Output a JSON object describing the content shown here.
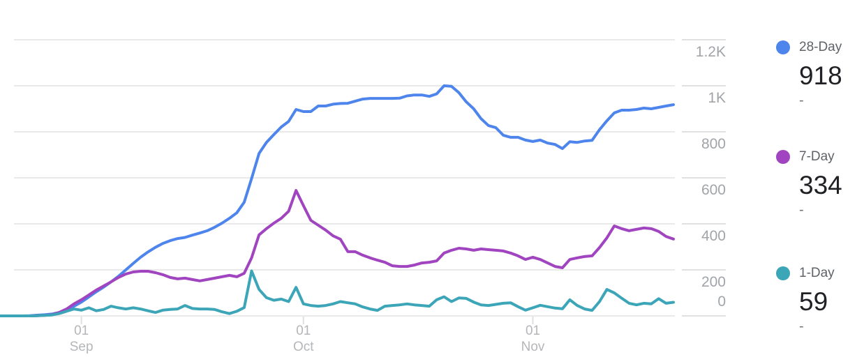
{
  "chart_data": {
    "type": "line",
    "title": "",
    "xlabel": "",
    "ylabel": "",
    "grid": true,
    "legend_position": "right",
    "x_axis": {
      "ticks": [
        {
          "index": 11,
          "line1": "01",
          "line2": "Sep"
        },
        {
          "index": 41,
          "line1": "01",
          "line2": "Oct"
        },
        {
          "index": 72,
          "line1": "01",
          "line2": "Nov"
        }
      ]
    },
    "y_axis": {
      "ylim": [
        0,
        1300
      ],
      "ticks": [
        {
          "value": 0,
          "label": "0"
        },
        {
          "value": 200,
          "label": "200"
        },
        {
          "value": 400,
          "label": "400"
        },
        {
          "value": 600,
          "label": "600"
        },
        {
          "value": 800,
          "label": "800"
        },
        {
          "value": 1000,
          "label": "1K"
        },
        {
          "value": 1200,
          "label": "1.2K"
        }
      ]
    },
    "series": [
      {
        "name": "28-Day",
        "color": "#4e85ec",
        "current_value": "918",
        "sub_label": "-",
        "values": [
          0,
          0,
          0,
          0,
          1,
          3,
          5,
          8,
          15,
          28,
          42,
          60,
          82,
          105,
          125,
          148,
          172,
          200,
          228,
          255,
          278,
          298,
          315,
          327,
          336,
          341,
          351,
          360,
          370,
          385,
          403,
          424,
          448,
          494,
          597,
          706,
          754,
          788,
          821,
          845,
          897,
          888,
          888,
          912,
          912,
          920,
          923,
          924,
          933,
          942,
          945,
          945,
          945,
          945,
          946,
          956,
          960,
          960,
          954,
          965,
          1000,
          998,
          970,
          930,
          900,
          857,
          827,
          818,
          785,
          776,
          776,
          764,
          758,
          764,
          751,
          745,
          727,
          757,
          754,
          760,
          763,
          809,
          848,
          882,
          894,
          894,
          897,
          903,
          900,
          906,
          912,
          918
        ]
      },
      {
        "name": "7-Day",
        "color": "#a144c0",
        "current_value": "334",
        "sub_label": "-",
        "values": [
          0,
          0,
          0,
          0,
          0,
          1,
          2,
          5,
          15,
          30,
          52,
          70,
          91,
          112,
          130,
          148,
          167,
          182,
          191,
          194,
          194,
          188,
          179,
          167,
          161,
          164,
          158,
          152,
          158,
          164,
          170,
          176,
          170,
          185,
          252,
          352,
          379,
          403,
          424,
          455,
          545,
          479,
          415,
          394,
          373,
          348,
          333,
          279,
          279,
          264,
          252,
          242,
          233,
          218,
          215,
          215,
          221,
          230,
          233,
          239,
          273,
          285,
          294,
          291,
          285,
          291,
          288,
          285,
          282,
          273,
          261,
          245,
          255,
          245,
          230,
          215,
          209,
          245,
          252,
          258,
          261,
          297,
          339,
          391,
          379,
          370,
          376,
          382,
          379,
          367,
          345,
          334
        ]
      },
      {
        "name": "1-Day",
        "color": "#3ca5b8",
        "current_value": "59",
        "sub_label": "-",
        "values": [
          0,
          0,
          0,
          0,
          0,
          1,
          2,
          4,
          10,
          20,
          30,
          25,
          35,
          22,
          28,
          42,
          35,
          30,
          35,
          30,
          22,
          15,
          25,
          28,
          30,
          45,
          32,
          30,
          30,
          28,
          18,
          10,
          20,
          36,
          195,
          115,
          79,
          68,
          73,
          62,
          124,
          52,
          45,
          42,
          45,
          52,
          62,
          57,
          52,
          39,
          30,
          24,
          42,
          45,
          48,
          52,
          48,
          45,
          42,
          70,
          83,
          62,
          78,
          76,
          60,
          48,
          45,
          50,
          55,
          57,
          40,
          25,
          35,
          46,
          40,
          34,
          31,
          70,
          45,
          30,
          24,
          62,
          115,
          100,
          77,
          55,
          48,
          55,
          52,
          75,
          55,
          59
        ]
      }
    ],
    "theme": {
      "gridline_color": "#e9e9e9",
      "axis_tick_color": "#e0e0e0",
      "y_label_color": "#a1a4a8",
      "x_label_color": "#b4b6b9",
      "legend_name_color": "#5f6368",
      "legend_value_color": "#202124",
      "legend_sub_color": "#757575"
    }
  }
}
